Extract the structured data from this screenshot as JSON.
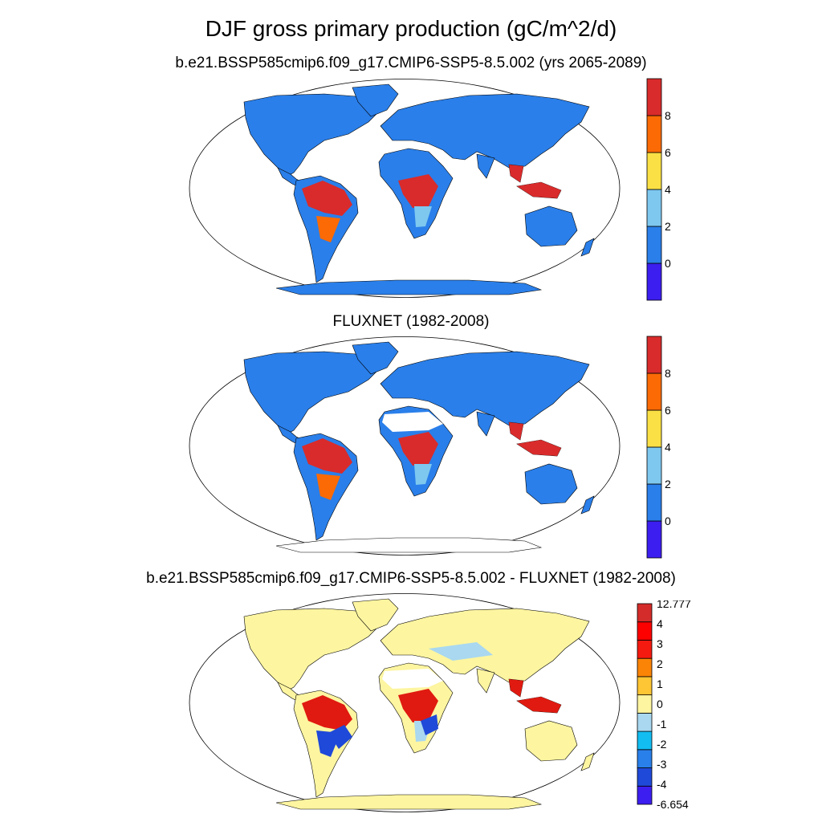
{
  "title": "DJF gross primary production (gC/m^2/d)",
  "panels": [
    {
      "subtitle": "b.e21.BSSP585cmip6.f09_g17.CMIP6-SSP5-8.5.002 (yrs 2065-2089)"
    },
    {
      "subtitle": "FLUXNET (1982-2008)"
    },
    {
      "subtitle": "b.e21.BSSP585cmip6.f09_g17.CMIP6-SSP5-8.5.002 - FLUXNET (1982-2008)"
    }
  ],
  "colorbars": {
    "absolute": {
      "colors": [
        "#3c1ef0",
        "#2a7fea",
        "#7ec8ef",
        "#fbe045",
        "#fb6a05",
        "#d92b2b"
      ],
      "labels": [
        "0",
        "2",
        "4",
        "6",
        "8"
      ]
    },
    "difference": {
      "colors": [
        "#3c1ef0",
        "#1f49d8",
        "#2a80ea",
        "#12bdf2",
        "#a9d8f0",
        "#fdf5a0",
        "#fec534",
        "#fb8406",
        "#f51a10",
        "#fd0000",
        "#d42c2a"
      ],
      "labels": [
        "12.777",
        "4",
        "3",
        "2",
        "1",
        "0",
        "-1",
        "-2",
        "-3",
        "-4",
        "-6.654"
      ]
    }
  },
  "map_colors": {
    "outline": "#000000",
    "ocean": "#ffffff",
    "absolute_base": "#2a7fea",
    "absolute_high": "#d92b2b",
    "absolute_mid": "#fb6a05",
    "absolute_light": "#7ec8ef",
    "diff_base": "#fdf5a0",
    "diff_high": "#e01a10",
    "diff_low": "#1f49d8",
    "diff_light": "#a9d8f0"
  }
}
